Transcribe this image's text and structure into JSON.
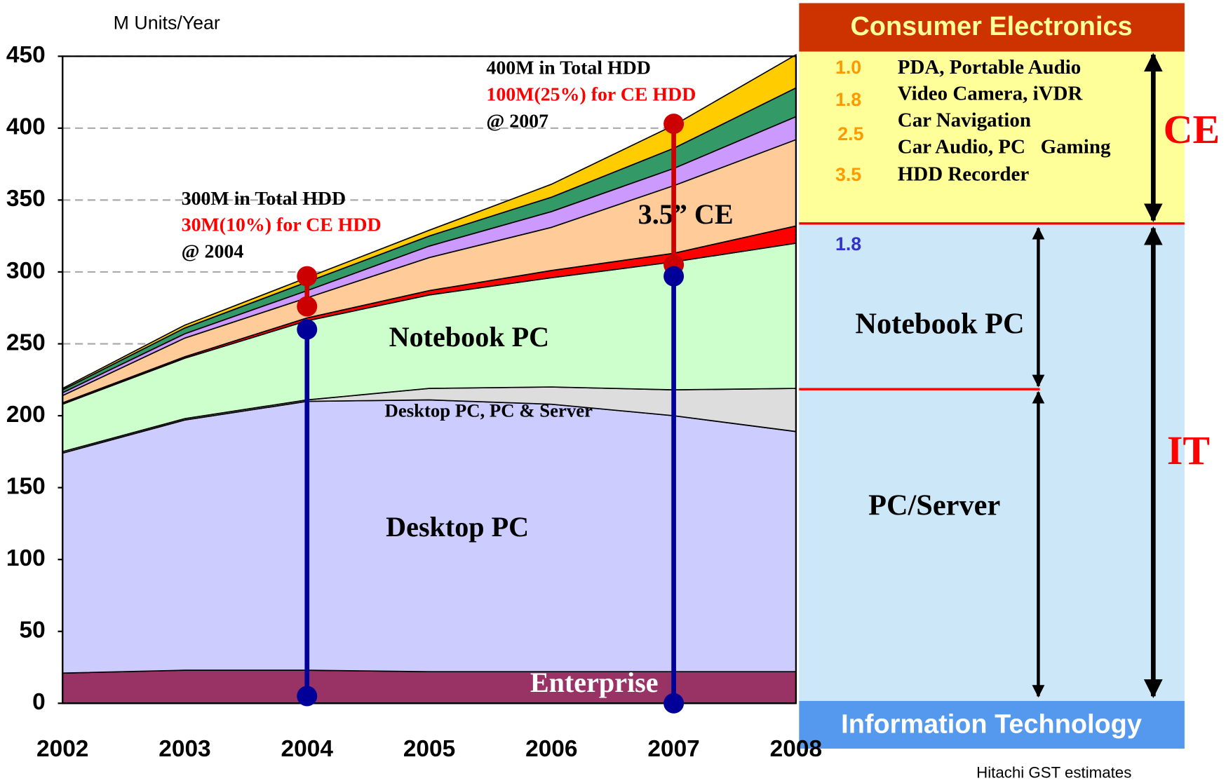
{
  "chart_data": {
    "type": "stacked_area",
    "y_label": "M Units/Year",
    "categories": [
      "2002",
      "2003",
      "2004",
      "2005",
      "2006",
      "2007",
      "2008"
    ],
    "ylim": [
      0,
      450
    ],
    "yticks": [
      0,
      50,
      100,
      150,
      200,
      250,
      300,
      350,
      400,
      450
    ],
    "grid": true,
    "series": [
      {
        "name": "Enterprise",
        "color": "#993366",
        "values": [
          21,
          23,
          23,
          22,
          22,
          22,
          22
        ]
      },
      {
        "name": "Desktop PC",
        "color": "#ccccff",
        "values": [
          153,
          174,
          187,
          189,
          186,
          178,
          167
        ]
      },
      {
        "name": "Desktop PC, PC & Server",
        "color": "#dddddd",
        "values": [
          1,
          1,
          1,
          8,
          12,
          18,
          30
        ]
      },
      {
        "name": "Notebook PC",
        "color": "#ccffcc",
        "values": [
          33,
          42,
          55,
          65,
          76,
          89,
          101
        ]
      },
      {
        "color": "#ff0000",
        "values": [
          1,
          1,
          2,
          3,
          5,
          6,
          12
        ]
      },
      {
        "name": "3.5” CE",
        "color": "#ffcc99",
        "values": [
          5,
          13,
          14,
          23,
          30,
          47,
          60
        ]
      },
      {
        "color": "#cc99ff",
        "values": [
          2,
          3,
          5,
          8,
          11,
          12,
          16
        ]
      },
      {
        "color": "#339966",
        "values": [
          2,
          4,
          6,
          7,
          10,
          14,
          20
        ]
      },
      {
        "color": "#ffcc00",
        "values": [
          1,
          2,
          3,
          4,
          9,
          16,
          23
        ]
      }
    ],
    "markers": [
      {
        "x": "2004",
        "ce": [
          297,
          276
        ],
        "it": [
          260,
          5
        ],
        "annotation": [
          "300M in Total HDD",
          "30M(10%) for CE HDD",
          "@ 2004"
        ]
      },
      {
        "x": "2007",
        "ce": [
          403,
          305
        ],
        "it": [
          297,
          0
        ],
        "annotation": [
          "400M in Total HDD",
          "100M(25%) for CE HDD",
          "@ 2007"
        ]
      }
    ],
    "source": "Hitachi GST estimates"
  },
  "panel": {
    "ce_title": "Consumer Electronics",
    "ce_rows": [
      {
        "size": "1.0",
        "label": "PDA, Portable Audio"
      },
      {
        "size": "1.8",
        "label": "Video Camera, iVDR"
      },
      {
        "size": "2.5",
        "label": "Car Navigation"
      },
      {
        "label": "Car Audio, PC   Gaming"
      },
      {
        "size": "3.5",
        "label": "HDD Recorder"
      }
    ],
    "ce_mark": "CE",
    "it_size": "1.8",
    "notebook": "Notebook PC",
    "server": "PC/Server",
    "it_mark": "IT",
    "it_title": "Information Technology"
  }
}
